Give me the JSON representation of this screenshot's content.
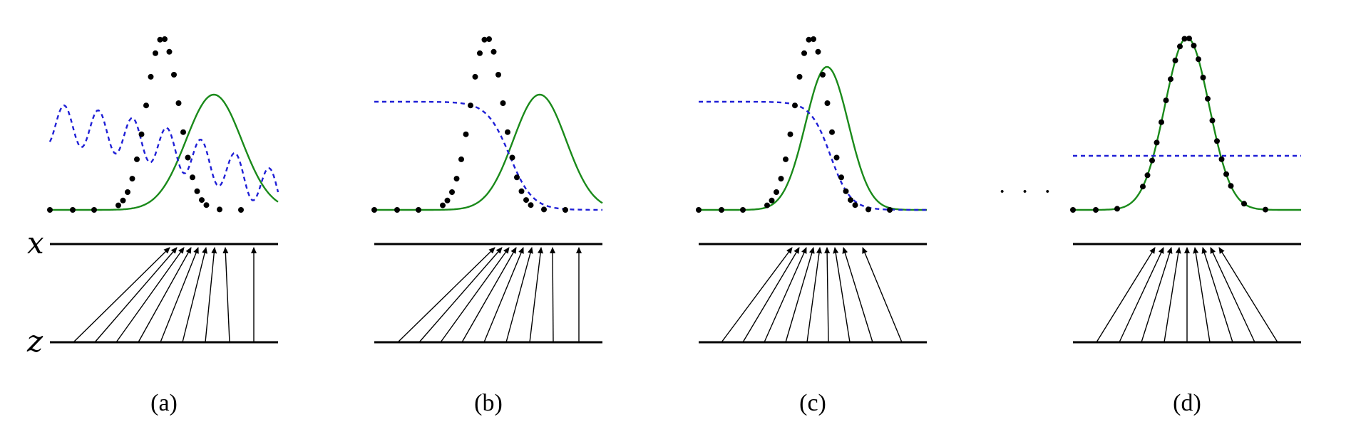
{
  "axis_labels": {
    "x": "x",
    "z": "z"
  },
  "ellipsis": "· · ·",
  "colors": {
    "data_points": "#000000",
    "model_density": "#1a8a1a",
    "discriminator": "#1f1fd6",
    "axis_line": "#000000",
    "mapping_arrows": "#000000"
  },
  "panels": [
    {
      "id": "a",
      "label": "(a)"
    },
    {
      "id": "b",
      "label": "(b)"
    },
    {
      "id": "c",
      "label": "(c)"
    },
    {
      "id": "d",
      "label": "(d)"
    }
  ]
}
